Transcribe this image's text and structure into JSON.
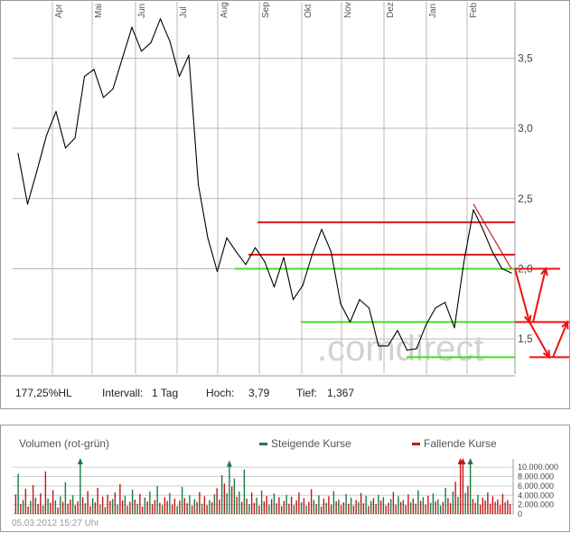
{
  "chart_data": [
    {
      "type": "line",
      "title": "",
      "xlabel": "",
      "ylabel": "",
      "x_tick_labels": [
        "Apr",
        "Mai",
        "Jun",
        "Jul",
        "Aug",
        "Sep",
        "Okt",
        "Nov",
        "Dez",
        "Jan",
        "Feb"
      ],
      "y_tick_labels": [
        "1,5",
        "2,0",
        "2,5",
        "3,0",
        "3,5"
      ],
      "y_ticks": [
        1.5,
        2.0,
        2.5,
        3.0,
        3.5
      ],
      "ylim": [
        1.25,
        3.85
      ],
      "grid": true,
      "series": [
        {
          "x": [
            "2011-03-07",
            "2011-03-14",
            "2011-03-21",
            "2011-03-28",
            "2011-04-04",
            "2011-04-11",
            "2011-04-18",
            "2011-04-25",
            "2011-05-02",
            "2011-05-09",
            "2011-05-16",
            "2011-05-23",
            "2011-05-30",
            "2011-06-06",
            "2011-06-13",
            "2011-06-20",
            "2011-06-27",
            "2011-07-04",
            "2011-07-11",
            "2011-07-18",
            "2011-07-25",
            "2011-08-01",
            "2011-08-08",
            "2011-08-15",
            "2011-08-22",
            "2011-08-29",
            "2011-09-05",
            "2011-09-12",
            "2011-09-19",
            "2011-09-26",
            "2011-10-03",
            "2011-10-10",
            "2011-10-17",
            "2011-10-24",
            "2011-10-31",
            "2011-11-07",
            "2011-11-14",
            "2011-11-21",
            "2011-11-28",
            "2011-12-05",
            "2011-12-12",
            "2011-12-19",
            "2011-12-26",
            "2012-01-02",
            "2012-01-09",
            "2012-01-16",
            "2012-01-23",
            "2012-01-30",
            "2012-02-06",
            "2012-02-13",
            "2012-02-20",
            "2012-02-27",
            "2012-03-05"
          ],
          "values": [
            2.82,
            2.46,
            2.7,
            2.95,
            3.12,
            2.86,
            2.93,
            3.37,
            3.42,
            3.22,
            3.28,
            3.5,
            3.72,
            3.55,
            3.61,
            3.78,
            3.62,
            3.37,
            3.52,
            2.6,
            2.22,
            1.98,
            2.22,
            2.12,
            2.03,
            2.15,
            2.05,
            1.87,
            2.08,
            1.78,
            1.88,
            2.1,
            2.28,
            2.12,
            1.75,
            1.62,
            1.78,
            1.72,
            1.45,
            1.45,
            1.56,
            1.42,
            1.43,
            1.6,
            1.72,
            1.76,
            1.58,
            2.05,
            2.42,
            2.28,
            2.12,
            2.0,
            1.97
          ]
        }
      ],
      "annotations": {
        "resistance_lines": [
          2.33,
          2.1
        ],
        "support_lines": [
          2.0,
          1.62,
          1.37
        ],
        "trend_line": {
          "from": [
            "2012-02-06",
            2.46
          ],
          "to": [
            "2012-03-05",
            2.0
          ]
        },
        "forecast_arrows": [
          [
            2.0,
            1.62
          ],
          [
            1.62,
            2.0
          ],
          [
            1.62,
            1.37
          ],
          [
            1.37,
            1.62
          ]
        ]
      },
      "info_bar": {
        "performance": "177,25%HL",
        "interval_label": "Intervall:",
        "interval_value": "1 Tag",
        "high_label": "Hoch:",
        "high_value": "3,79",
        "low_label": "Tief:",
        "low_value": "1,367"
      },
      "watermark": ".comdirect",
      "colors": {
        "price": "#000000",
        "resistance": "#d61a1a",
        "support": "#44dd22",
        "arrow": "#ee1111"
      }
    },
    {
      "type": "bar",
      "title": "Volumen (rot-grün)",
      "legend": [
        {
          "name": "Steigende Kurse",
          "color": "#1a7a44"
        },
        {
          "name": "Fallende Kurse",
          "color": "#c41616"
        }
      ],
      "y_tick_labels": [
        "10.000.000",
        "8.000.000",
        "6.000.000",
        "4.000.000",
        "2.000.000",
        "0"
      ],
      "y_ticks": [
        10000000,
        8000000,
        6000000,
        4000000,
        2000000,
        0
      ],
      "ylim": [
        0,
        11000000
      ],
      "values": [
        4.2,
        8.6,
        2.1,
        3.0,
        5.4,
        1.6,
        2.8,
        6.2,
        3.5,
        2.1,
        4.4,
        1.8,
        9.1,
        3.3,
        2.4,
        5.1,
        2.9,
        1.4,
        3.8,
        2.6,
        6.8,
        2.2,
        3.1,
        4.0,
        1.9,
        2.7,
        11.0,
        3.6,
        2.3,
        4.9,
        1.7,
        3.4,
        2.5,
        5.6,
        2.0,
        3.7,
        1.5,
        4.1,
        2.8,
        3.2,
        4.6,
        2.0,
        6.4,
        2.9,
        3.9,
        1.8,
        2.6,
        5.2,
        3.1,
        2.2,
        4.3,
        1.6,
        3.5,
        2.7,
        4.8,
        2.1,
        3.0,
        6.0,
        2.4,
        1.9,
        3.6,
        2.8,
        4.5,
        2.0,
        3.3,
        1.7,
        2.9,
        5.8,
        3.4,
        2.3,
        4.0,
        1.8,
        3.2,
        2.6,
        4.7,
        2.2,
        3.8,
        1.9,
        3.0,
        2.5,
        4.2,
        5.5,
        3.1,
        8.3,
        6.5,
        4.4,
        10.5,
        5.9,
        7.6,
        3.7,
        4.8,
        2.6,
        9.5,
        3.3,
        2.1,
        4.6,
        2.4,
        3.5,
        1.8,
        5.0,
        2.7,
        3.9,
        2.0,
        3.2,
        4.4,
        2.3,
        3.6,
        1.7,
        2.8,
        4.1,
        2.2,
        3.7,
        1.9,
        2.9,
        4.6,
        2.5,
        3.4,
        1.8,
        2.6,
        5.3,
        3.0,
        2.1,
        4.0,
        1.6,
        3.3,
        2.4,
        3.8,
        2.0,
        4.9,
        2.7,
        3.1,
        1.9,
        2.5,
        4.3,
        2.2,
        3.5,
        1.8,
        3.0,
        2.6,
        4.5,
        2.3,
        3.9,
        1.7,
        2.8,
        3.4,
        2.1,
        4.1,
        2.9,
        3.6,
        1.8,
        2.4,
        3.2,
        4.7,
        2.0,
        3.8,
        2.6,
        3.0,
        1.9,
        4.2,
        2.5,
        3.3,
        2.2,
        5.1,
        2.8,
        3.6,
        2.0,
        3.9,
        2.4,
        4.4,
        2.7,
        3.1,
        1.8,
        2.6,
        5.6,
        3.4,
        2.3,
        4.8,
        6.9,
        3.7,
        11.0,
        11.0,
        4.5,
        6.0,
        11.0,
        3.2,
        2.4,
        4.1,
        2.0,
        3.5,
        2.9,
        4.6,
        2.2,
        3.8,
        2.6,
        3.1,
        1.9,
        4.3,
        2.5,
        3.0,
        2.1
      ],
      "direction": "rgrgrrgrgrrgrgrrgrgrgrrgrrgrgrrgrrgrgrrgrgrrgrrgrgrrgrgrrgrgrrgrrgrgrrgrgrrgrrgrgrrgrggrgrgrgrgrrgrgrrgrgrrgrgrrgrrgrgrrgrgrrgrrgrgrrgrgrrgrrgrgrrgrgrrgrrgrgrrgrrgrgrrggrggrgrrgrgrrgrgrrgrr",
      "arrow_bars": [
        26,
        86,
        179,
        180,
        183
      ],
      "timestamp": "05.03.2012 15:27 Uhr"
    }
  ]
}
